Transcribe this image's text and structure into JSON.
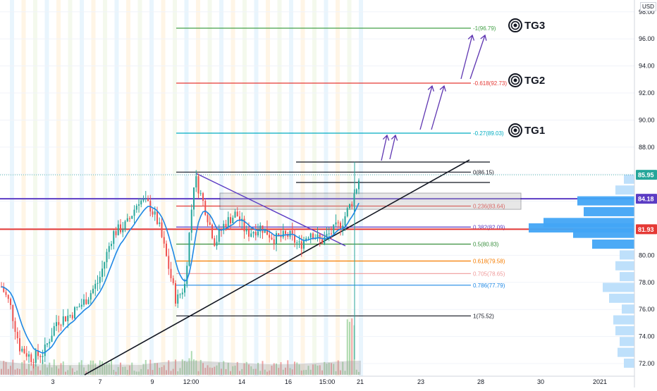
{
  "chart_data": {
    "type": "candlestick",
    "currency": "USD",
    "ylim": [
      71,
      99
    ],
    "y_ticks": [
      72.0,
      74.0,
      76.0,
      78.0,
      80.0,
      82.0,
      84.0,
      86.0,
      88.0,
      90.0,
      92.0,
      94.0,
      96.0,
      98.0
    ],
    "x_ticks": [
      "3",
      "7",
      "9",
      "12:00",
      "14",
      "16",
      "15:00",
      "21",
      "23",
      "28",
      "30",
      "2021"
    ],
    "price_tags": [
      {
        "value": "85.95",
        "color": "#26a69a"
      },
      {
        "value": "84.18",
        "color": "#5b3cc4"
      },
      {
        "value": "81.93",
        "color": "#e53935"
      }
    ],
    "fib_levels": [
      {
        "label": "0(86.15)",
        "value": 86.15,
        "color": "#131722"
      },
      {
        "label": "0.236(83.64)",
        "value": 83.64,
        "color": "#e53935"
      },
      {
        "label": "0.382(82.09)",
        "value": 82.09,
        "color": "#5b3cc4"
      },
      {
        "label": "0.5(80.83)",
        "value": 80.83,
        "color": "#388e3c"
      },
      {
        "label": "0.618(79.58)",
        "value": 79.58,
        "color": "#f57c00"
      },
      {
        "label": "0.705(78.65)",
        "value": 78.65,
        "color": "#ef9a9a"
      },
      {
        "label": "0.786(77.79)",
        "value": 77.79,
        "color": "#1e88e5"
      },
      {
        "label": "1(75.52)",
        "value": 75.52,
        "color": "#131722"
      }
    ],
    "extension_levels": [
      {
        "label": "-0.27(89.03)",
        "value": 89.03,
        "color": "#00acc1",
        "target": "TG1"
      },
      {
        "label": "-0.618(92.73)",
        "value": 92.73,
        "color": "#e53935",
        "target": "TG2"
      },
      {
        "label": "-1(96.79)",
        "value": 96.79,
        "color": "#43a047",
        "target": "TG3"
      }
    ],
    "horizontal_levels": [
      {
        "value": 84.18,
        "color": "#5b3cc4"
      },
      {
        "value": 81.93,
        "color": "#e53935"
      }
    ],
    "close_value": 85.95,
    "volume_profile": [
      {
        "price": 72.0,
        "volume": 0.1
      },
      {
        "price": 72.8,
        "volume": 0.16
      },
      {
        "price": 73.6,
        "volume": 0.14
      },
      {
        "price": 74.4,
        "volume": 0.18
      },
      {
        "price": 75.2,
        "volume": 0.2
      },
      {
        "price": 76.0,
        "volume": 0.12
      },
      {
        "price": 76.8,
        "volume": 0.24
      },
      {
        "price": 77.6,
        "volume": 0.3
      },
      {
        "price": 78.4,
        "volume": 0.14
      },
      {
        "price": 79.2,
        "volume": 0.18
      },
      {
        "price": 80.0,
        "volume": 0.14
      },
      {
        "price": 80.8,
        "volume": 0.4
      },
      {
        "price": 81.6,
        "volume": 0.58
      },
      {
        "price": 82.0,
        "volume": 1.0
      },
      {
        "price": 82.4,
        "volume": 0.86
      },
      {
        "price": 83.2,
        "volume": 0.48
      },
      {
        "price": 84.0,
        "volume": 0.54
      },
      {
        "price": 84.8,
        "volume": 0.18
      },
      {
        "price": 85.6,
        "volume": 0.1
      }
    ],
    "title": "",
    "xlabel": "",
    "ylabel": ""
  },
  "ui": {
    "currency_label": "USD",
    "targets": [
      "TG1",
      "TG2",
      "TG3"
    ]
  }
}
